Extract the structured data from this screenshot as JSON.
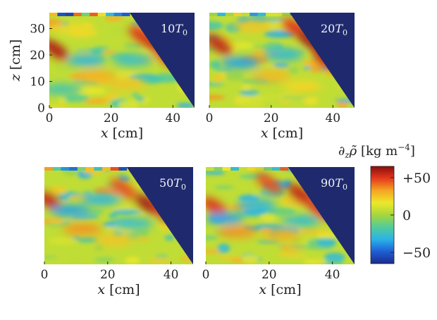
{
  "chart_data": {
    "type": "heatmap",
    "colorbar": {
      "title_parts": [
        "∂",
        "z",
        "ρ̃",
        " [kg m",
        "−4",
        "]"
      ],
      "ticks": [
        {
          "value": 50,
          "label": "+50"
        },
        {
          "value": 0,
          "label": "0"
        },
        {
          "value": -50,
          "label": "−50"
        }
      ],
      "range": [
        -65,
        65
      ],
      "colormap": [
        "#1a2b8c",
        "#1f5fd6",
        "#2ab3e8",
        "#52cc9a",
        "#a6d63d",
        "#ece82a",
        "#f5a623",
        "#e53a1d",
        "#8a0d0d"
      ],
      "mask_color": "#1f2a6e"
    },
    "panels": [
      {
        "label_main": "10",
        "label_sub": "0",
        "label_italic": "T",
        "x_label": "x",
        "x_unit": "[cm]",
        "y_label": "z",
        "y_unit": "[cm]",
        "xlim": [
          0,
          47
        ],
        "ylim": [
          0,
          36
        ],
        "x_ticks": [
          0,
          20,
          40
        ],
        "y_ticks": [
          0,
          10,
          20,
          30
        ],
        "features": [
          {
            "x": 2,
            "z": 22,
            "value": 58
          },
          {
            "x": 30,
            "z": 27,
            "value": 50
          },
          {
            "x": 35,
            "z": 23,
            "value": 55
          },
          {
            "x": 38,
            "z": 19,
            "value": 45
          },
          {
            "x": 15,
            "z": 12,
            "value": 30
          },
          {
            "x": 25,
            "z": 9,
            "value": 25
          },
          {
            "x": 12,
            "z": 18,
            "value": -30
          },
          {
            "x": 27,
            "z": 18,
            "value": -25
          },
          {
            "x": 4,
            "z": 7,
            "value": -20
          },
          {
            "x": 8,
            "z": 30,
            "value": 20
          }
        ]
      },
      {
        "label_main": "20",
        "label_sub": "0",
        "label_italic": "T",
        "x_label": "x",
        "x_unit": "[cm]",
        "y_label": "",
        "y_unit": "",
        "xlim": [
          0,
          47
        ],
        "ylim": [
          0,
          36
        ],
        "x_ticks": [
          0,
          20,
          40
        ],
        "y_ticks": [],
        "features": [
          {
            "x": 3,
            "z": 24,
            "value": 55
          },
          {
            "x": 28,
            "z": 30,
            "value": 50
          },
          {
            "x": 33,
            "z": 25,
            "value": 60
          },
          {
            "x": 38,
            "z": 18,
            "value": 55
          },
          {
            "x": 20,
            "z": 12,
            "value": 28
          },
          {
            "x": 10,
            "z": 17,
            "value": -35
          },
          {
            "x": 24,
            "z": 20,
            "value": -28
          },
          {
            "x": 14,
            "z": 31,
            "value": 25
          },
          {
            "x": 30,
            "z": 8,
            "value": 20
          }
        ]
      },
      {
        "label_main": "50",
        "label_sub": "0",
        "label_italic": "T",
        "x_label": "x",
        "x_unit": "[cm]",
        "y_label": "",
        "y_unit": "",
        "xlim": [
          0,
          47
        ],
        "ylim": [
          0,
          36
        ],
        "x_ticks": [
          0,
          20,
          40
        ],
        "y_ticks": [],
        "features": [
          {
            "x": 2,
            "z": 23,
            "value": 55
          },
          {
            "x": 25,
            "z": 28,
            "value": 45
          },
          {
            "x": 33,
            "z": 22,
            "value": 60
          },
          {
            "x": 38,
            "z": 19,
            "value": 50
          },
          {
            "x": 12,
            "z": 13,
            "value": 35
          },
          {
            "x": 22,
            "z": 9,
            "value": 25
          },
          {
            "x": 8,
            "z": 20,
            "value": -35
          },
          {
            "x": 18,
            "z": 24,
            "value": -30
          },
          {
            "x": 28,
            "z": 15,
            "value": -25
          }
        ]
      },
      {
        "label_main": "90",
        "label_sub": "0",
        "label_italic": "T",
        "x_label": "x",
        "x_unit": "[cm]",
        "y_label": "",
        "y_unit": "",
        "xlim": [
          0,
          47
        ],
        "ylim": [
          0,
          36
        ],
        "x_ticks": [
          0,
          20,
          40
        ],
        "y_ticks": [],
        "features": [
          {
            "x": 3,
            "z": 21,
            "value": 50
          },
          {
            "x": 20,
            "z": 30,
            "value": 45
          },
          {
            "x": 30,
            "z": 26,
            "value": 55
          },
          {
            "x": 36,
            "z": 20,
            "value": 50
          },
          {
            "x": 10,
            "z": 12,
            "value": 35
          },
          {
            "x": 24,
            "z": 11,
            "value": 30
          },
          {
            "x": 6,
            "z": 17,
            "value": -35
          },
          {
            "x": 16,
            "z": 22,
            "value": -30
          },
          {
            "x": 30,
            "z": 16,
            "value": -25
          }
        ]
      }
    ]
  }
}
